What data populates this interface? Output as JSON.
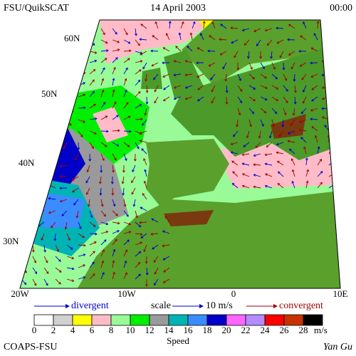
{
  "header": {
    "left": "FSU/QuikSCAT",
    "center": "14 April 2003",
    "right": "00:00"
  },
  "map": {
    "lat_labels": [
      "60N",
      "50N",
      "40N",
      "30N"
    ],
    "lon_labels": [
      "20W",
      "10W",
      "0",
      "10E"
    ]
  },
  "key": {
    "divergent": "divergent",
    "scale": "scale",
    "scale_value": "10 m/s",
    "convergent": "convergent"
  },
  "colorbar": {
    "labels": [
      "0",
      "2",
      "4",
      "6",
      "8",
      "10",
      "12",
      "14",
      "16",
      "18",
      "20",
      "22",
      "24",
      "26",
      "28"
    ],
    "unit": "m/s",
    "title": "Speed",
    "colors": [
      "#ffffff",
      "#d0d0d0",
      "#ffff00",
      "#ffbcc8",
      "#98fb98",
      "#00ee00",
      "#9a9a9a",
      "#00b4b4",
      "#3a8cff",
      "#0000c8",
      "#ff66ff",
      "#b48cff",
      "#ff0000",
      "#c83200",
      "#000000"
    ]
  },
  "footer": {
    "left": "COAPS-FSU",
    "right": "Yan Gu"
  }
}
